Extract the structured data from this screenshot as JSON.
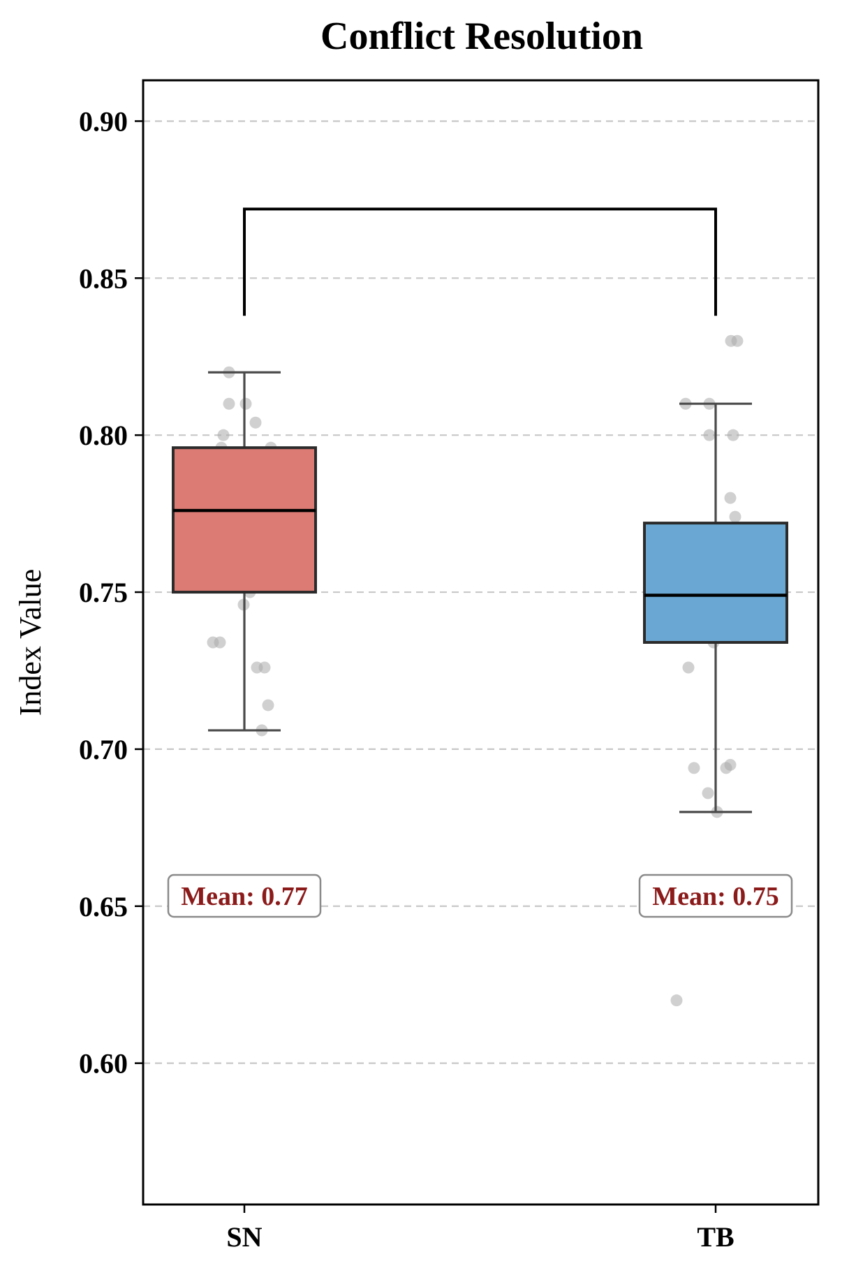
{
  "chart_data": {
    "type": "box",
    "title": "Conflict Resolution",
    "xlabel": "",
    "ylabel": "Index Value",
    "ylim": [
      0.555,
      0.913
    ],
    "yticks": [
      0.6,
      0.65,
      0.7,
      0.75,
      0.8,
      0.85,
      0.9
    ],
    "ytick_labels": [
      "0.60",
      "0.65",
      "0.70",
      "0.75",
      "0.80",
      "0.85",
      "0.90"
    ],
    "grid": "horizontal-dashed",
    "categories": [
      "SN",
      "TB"
    ],
    "groups": [
      {
        "name": "SN",
        "color": "#dc7b73",
        "whisker_low": 0.706,
        "q1": 0.75,
        "median": 0.776,
        "q3": 0.796,
        "whisker_high": 0.82,
        "mean_label": "Mean: 0.77",
        "points": [
          {
            "offset": -0.22,
            "value": 0.82
          },
          {
            "offset": -0.22,
            "value": 0.81
          },
          {
            "offset": 0.02,
            "value": 0.81
          },
          {
            "offset": 0.16,
            "value": 0.804
          },
          {
            "offset": -0.3,
            "value": 0.8
          },
          {
            "offset": -0.33,
            "value": 0.796
          },
          {
            "offset": -0.07,
            "value": 0.794
          },
          {
            "offset": 0.38,
            "value": 0.796
          },
          {
            "offset": -0.28,
            "value": 0.79
          },
          {
            "offset": 0.2,
            "value": 0.79
          },
          {
            "offset": -0.36,
            "value": 0.784
          },
          {
            "offset": 0.03,
            "value": 0.784
          },
          {
            "offset": 0.36,
            "value": 0.784
          },
          {
            "offset": -0.29,
            "value": 0.776
          },
          {
            "offset": -0.2,
            "value": 0.776
          },
          {
            "offset": 0.21,
            "value": 0.776
          },
          {
            "offset": 0.23,
            "value": 0.77
          },
          {
            "offset": -0.06,
            "value": 0.764
          },
          {
            "offset": 0.35,
            "value": 0.764
          },
          {
            "offset": 0.09,
            "value": 0.756
          },
          {
            "offset": 0.08,
            "value": 0.75
          },
          {
            "offset": -0.01,
            "value": 0.746
          },
          {
            "offset": -0.45,
            "value": 0.734
          },
          {
            "offset": -0.35,
            "value": 0.734
          },
          {
            "offset": 0.18,
            "value": 0.726
          },
          {
            "offset": 0.29,
            "value": 0.726
          },
          {
            "offset": 0.34,
            "value": 0.714
          },
          {
            "offset": 0.25,
            "value": 0.706
          }
        ]
      },
      {
        "name": "TB",
        "color": "#6aa8d3",
        "whisker_low": 0.68,
        "q1": 0.734,
        "median": 0.749,
        "q3": 0.772,
        "whisker_high": 0.81,
        "mean_label": "Mean: 0.75",
        "points": [
          {
            "offset": 0.22,
            "value": 0.83
          },
          {
            "offset": 0.31,
            "value": 0.83
          },
          {
            "offset": -0.43,
            "value": 0.81
          },
          {
            "offset": -0.09,
            "value": 0.81
          },
          {
            "offset": -0.09,
            "value": 0.8
          },
          {
            "offset": 0.25,
            "value": 0.8
          },
          {
            "offset": 0.21,
            "value": 0.78
          },
          {
            "offset": 0.28,
            "value": 0.774
          },
          {
            "offset": 0.23,
            "value": 0.766
          },
          {
            "offset": 0.24,
            "value": 0.76
          },
          {
            "offset": -0.15,
            "value": 0.756
          },
          {
            "offset": -0.18,
            "value": 0.754
          },
          {
            "offset": 0.27,
            "value": 0.754
          },
          {
            "offset": 0.38,
            "value": 0.755
          },
          {
            "offset": 0.48,
            "value": 0.75
          },
          {
            "offset": -0.44,
            "value": 0.748
          },
          {
            "offset": -0.43,
            "value": 0.746
          },
          {
            "offset": 0.08,
            "value": 0.746
          },
          {
            "offset": -0.09,
            "value": 0.744
          },
          {
            "offset": 0.26,
            "value": 0.742
          },
          {
            "offset": 0.37,
            "value": 0.74
          },
          {
            "offset": 0.03,
            "value": 0.736
          },
          {
            "offset": -0.03,
            "value": 0.734
          },
          {
            "offset": -0.39,
            "value": 0.726
          },
          {
            "offset": 0.15,
            "value": 0.694
          },
          {
            "offset": 0.21,
            "value": 0.695
          },
          {
            "offset": -0.31,
            "value": 0.694
          },
          {
            "offset": -0.11,
            "value": 0.686
          },
          {
            "offset": 0.02,
            "value": 0.68
          },
          {
            "offset": -0.56,
            "value": 0.62
          }
        ]
      }
    ],
    "significance_bracket": {
      "from": "SN",
      "to": "TB",
      "y_top": 0.872,
      "y_bottom": 0.838
    }
  }
}
